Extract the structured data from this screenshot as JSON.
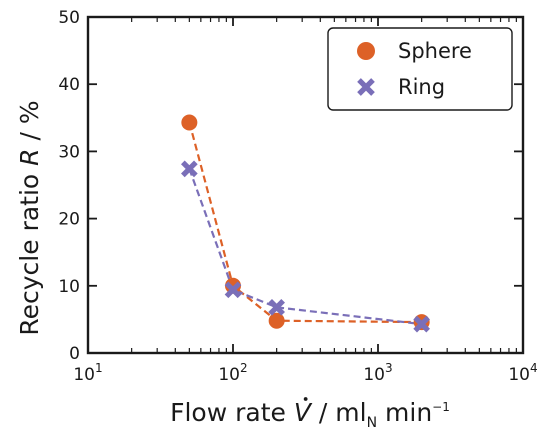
{
  "chart_data": {
    "type": "scatter",
    "x_scale": "log",
    "xlim": [
      10,
      10000
    ],
    "ylim": [
      0,
      50
    ],
    "xticks": [
      10,
      100,
      1000,
      10000
    ],
    "xtick_labels": [
      {
        "base": "10",
        "exp": "1"
      },
      {
        "base": "10",
        "exp": "2"
      },
      {
        "base": "10",
        "exp": "3"
      },
      {
        "base": "10",
        "exp": "4"
      }
    ],
    "yticks": [
      0,
      10,
      20,
      30,
      40,
      50
    ],
    "ytick_labels": [
      "0",
      "10",
      "20",
      "30",
      "40",
      "50"
    ],
    "xlabel": {
      "prefix": "Flow rate ",
      "var": "V",
      "mid": " / ml",
      "sub": "N",
      "unit": " min",
      "sup": "−1"
    },
    "ylabel": {
      "prefix": "Recycle ratio ",
      "var": "R",
      "suffix": " / %"
    },
    "grid": false,
    "legend_position": "top-right",
    "series": [
      {
        "name": "Sphere",
        "marker": "circle",
        "color": "#dd6127",
        "line": "dashed",
        "x": [
          50,
          100,
          200,
          2000
        ],
        "y": [
          34.3,
          10.0,
          4.8,
          4.6
        ]
      },
      {
        "name": "Ring",
        "marker": "x",
        "color": "#7a6fb8",
        "line": "dashed",
        "x": [
          50,
          100,
          200,
          2000
        ],
        "y": [
          27.4,
          9.4,
          6.8,
          4.3
        ]
      }
    ]
  }
}
